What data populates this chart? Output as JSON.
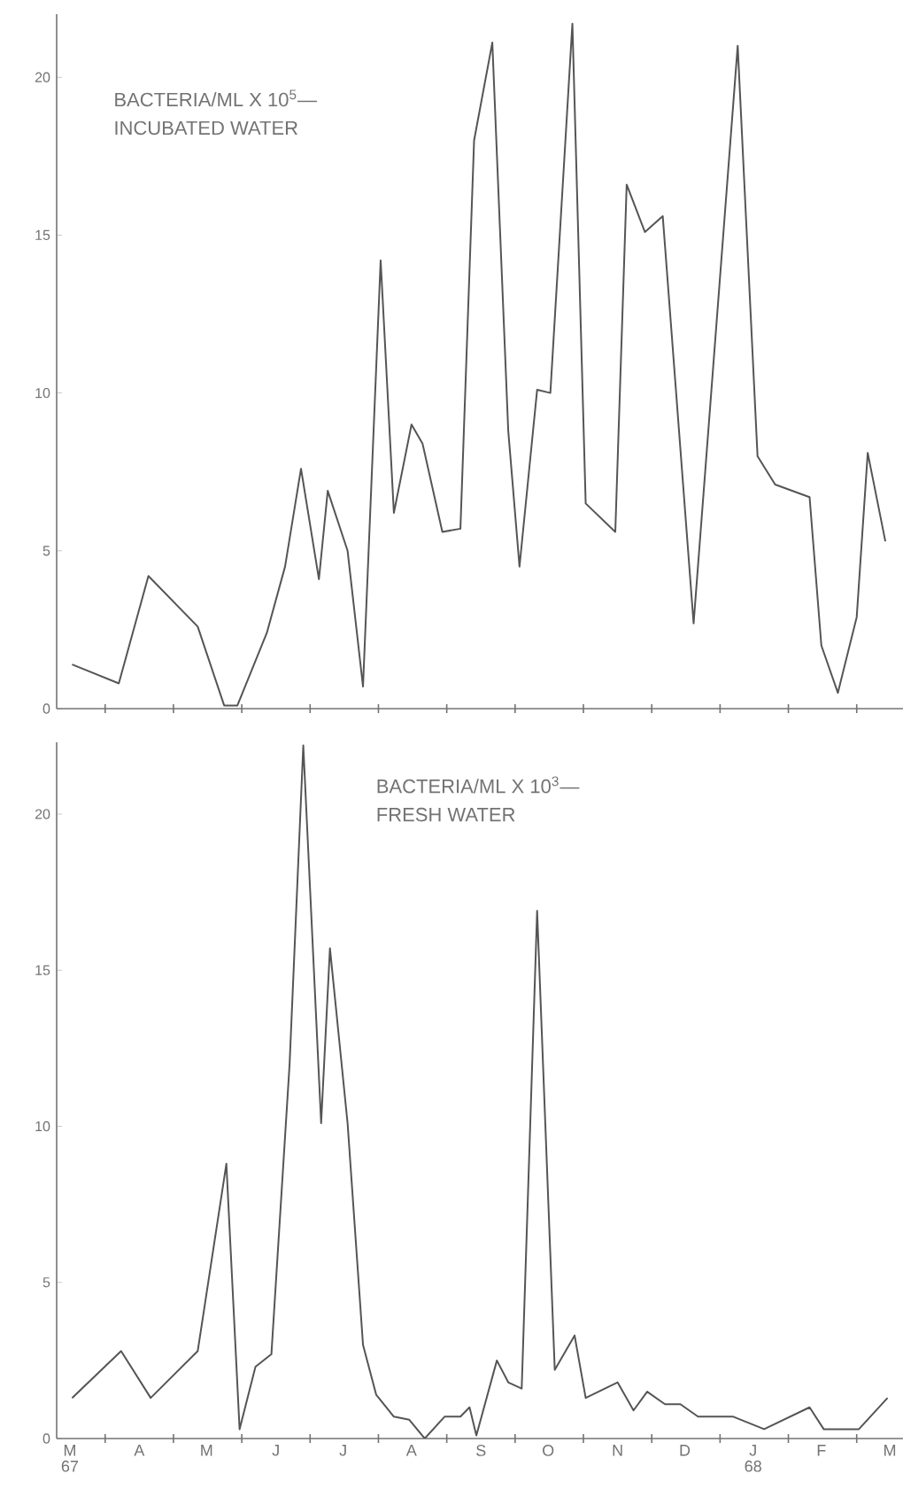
{
  "chart_data": [
    {
      "type": "line",
      "title": "BACTERIA/ML X 10$^{5}$—",
      "subtitle": "INCUBATED WATER",
      "xlim": [
        "1967-03-10",
        "1968-03-22"
      ],
      "ylim": [
        0,
        22
      ],
      "yticks": [
        0,
        5,
        10,
        15,
        20
      ],
      "tick_labels": "y",
      "marker": "none",
      "line_style": "solid",
      "xticks": [
        {
          "value": "1967-04-01",
          "label": null
        },
        {
          "value": "1967-05-01",
          "label": null
        },
        {
          "value": "1967-06-01",
          "label": null
        },
        {
          "value": "1967-07-01",
          "label": null
        },
        {
          "value": "1967-08-01",
          "label": null
        },
        {
          "value": "1967-09-01",
          "label": null
        },
        {
          "value": "1967-10-01",
          "label": null
        },
        {
          "value": "1967-11-01",
          "label": null
        },
        {
          "value": "1967-12-01",
          "label": null
        },
        {
          "value": "1968-01-01",
          "label": null
        },
        {
          "value": "1968-02-01",
          "label": null
        },
        {
          "value": "1968-03-01",
          "label": null
        }
      ],
      "series": [
        {
          "color": "#555555",
          "x": [
            "1967-03-17",
            "1967-04-07",
            "1967-04-20",
            "1967-05-12",
            "1967-05-24",
            "1967-05-30",
            "1967-06-12",
            "1967-06-20",
            "1967-06-27",
            "1967-07-05",
            "1967-07-09",
            "1967-07-18",
            "1967-07-25",
            "1967-08-02",
            "1967-08-08",
            "1967-08-16",
            "1967-08-21",
            "1967-08-30",
            "1967-09-07",
            "1967-09-13",
            "1967-09-21",
            "1967-09-28",
            "1967-10-03",
            "1967-10-11",
            "1967-10-17",
            "1967-10-27",
            "1967-11-02",
            "1967-11-15",
            "1967-11-20",
            "1967-11-28",
            "1967-12-06",
            "1967-12-20",
            "1968-01-09",
            "1968-01-18",
            "1968-01-26",
            "1968-02-10",
            "1968-02-15",
            "1968-02-22",
            "1968-03-01",
            "1968-03-06",
            "1968-03-14"
          ],
          "values": [
            1.4,
            0.8,
            4.2,
            2.6,
            0.1,
            0.1,
            2.4,
            4.5,
            7.6,
            4.1,
            6.9,
            5.0,
            0.7,
            14.2,
            6.2,
            9.0,
            8.4,
            5.6,
            5.7,
            18.0,
            21.1,
            8.8,
            4.5,
            10.1,
            10.0,
            21.7,
            6.5,
            5.6,
            16.6,
            15.1,
            15.6,
            2.7,
            21.0,
            8.0,
            7.1,
            6.7,
            2.0,
            0.5,
            2.9,
            8.1,
            5.3
          ]
        }
      ]
    },
    {
      "type": "line",
      "title": "BACTERIA/ML X 10$^{3}$—",
      "subtitle": "FRESH WATER",
      "xlim": [
        "1967-03-10",
        "1968-03-22"
      ],
      "ylim": [
        0,
        22.3
      ],
      "yticks": [
        0,
        5,
        10,
        15,
        20
      ],
      "marker": "none",
      "line_style": "solid",
      "xticks": [
        {
          "value": "1967-03-16",
          "label": "M 67"
        },
        {
          "value": "1967-04-16",
          "label": "A"
        },
        {
          "value": "1967-05-16",
          "label": "M"
        },
        {
          "value": "1967-06-16",
          "label": "J"
        },
        {
          "value": "1967-07-16",
          "label": "J"
        },
        {
          "value": "1967-08-16",
          "label": "A"
        },
        {
          "value": "1967-09-16",
          "label": "S"
        },
        {
          "value": "1967-10-16",
          "label": "O"
        },
        {
          "value": "1967-11-16",
          "label": "N"
        },
        {
          "value": "1967-12-16",
          "label": "D"
        },
        {
          "value": "1968-01-16",
          "label": "J 68"
        },
        {
          "value": "1968-02-15",
          "label": "F"
        },
        {
          "value": "1968-03-16",
          "label": "M"
        },
        {
          "value": "1967-04-01",
          "label": null
        },
        {
          "value": "1967-05-01",
          "label": null
        },
        {
          "value": "1967-06-01",
          "label": null
        },
        {
          "value": "1967-07-01",
          "label": null
        },
        {
          "value": "1967-08-01",
          "label": null
        },
        {
          "value": "1967-09-01",
          "label": null
        },
        {
          "value": "1967-10-01",
          "label": null
        },
        {
          "value": "1967-11-01",
          "label": null
        },
        {
          "value": "1967-12-01",
          "label": null
        },
        {
          "value": "1968-01-01",
          "label": null
        },
        {
          "value": "1968-02-01",
          "label": null
        },
        {
          "value": "1968-03-01",
          "label": null
        }
      ],
      "series": [
        {
          "color": "#555555",
          "x": [
            "1967-03-17",
            "1967-04-08",
            "1967-04-21",
            "1967-05-12",
            "1967-05-25",
            "1967-05-31",
            "1967-06-07",
            "1967-06-14",
            "1967-06-22",
            "1967-06-28",
            "1967-07-06",
            "1967-07-10",
            "1967-07-18",
            "1967-07-25",
            "1967-07-31",
            "1967-08-08",
            "1967-08-15",
            "1967-08-22",
            "1967-08-31",
            "1967-09-07",
            "1967-09-11",
            "1967-09-14",
            "1967-09-23",
            "1967-09-28",
            "1967-10-04",
            "1967-10-11",
            "1967-10-19",
            "1967-10-28",
            "1967-11-02",
            "1967-11-16",
            "1967-11-23",
            "1967-11-29",
            "1967-12-07",
            "1967-12-14",
            "1967-12-22",
            "1968-01-07",
            "1968-01-21",
            "1968-02-10",
            "1968-02-16",
            "1968-03-02",
            "1968-03-15"
          ],
          "values": [
            1.3,
            2.8,
            1.3,
            2.8,
            8.8,
            0.3,
            2.3,
            2.7,
            12.0,
            22.2,
            10.1,
            15.7,
            10.1,
            3.0,
            1.4,
            0.7,
            0.6,
            0.0,
            0.7,
            0.7,
            1.0,
            0.1,
            2.5,
            1.8,
            1.6,
            16.9,
            2.2,
            3.3,
            1.3,
            1.8,
            0.9,
            1.5,
            1.1,
            1.1,
            0.7,
            0.7,
            0.3,
            1.0,
            0.3,
            0.3,
            1.3
          ]
        }
      ]
    }
  ]
}
